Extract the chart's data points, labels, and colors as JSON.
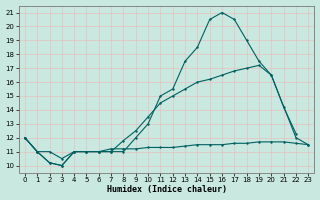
{
  "xlabel": "Humidex (Indice chaleur)",
  "bg_color": "#c8e8e0",
  "grid_color": "#e8c8c8",
  "line_color": "#006060",
  "xlim": [
    -0.5,
    23.5
  ],
  "ylim": [
    9.5,
    21.5
  ],
  "yticks": [
    10,
    11,
    12,
    13,
    14,
    15,
    16,
    17,
    18,
    19,
    20,
    21
  ],
  "xticks": [
    0,
    1,
    2,
    3,
    4,
    5,
    6,
    7,
    8,
    9,
    10,
    11,
    12,
    13,
    14,
    15,
    16,
    17,
    18,
    19,
    20,
    21,
    22,
    23
  ],
  "line1_x": [
    0,
    1,
    2,
    3,
    4,
    5,
    6,
    7,
    8,
    9,
    10,
    11,
    12,
    13,
    14,
    15,
    16,
    17,
    18,
    19,
    20,
    21,
    22
  ],
  "line1_y": [
    12.0,
    11.0,
    10.2,
    10.0,
    11.0,
    11.0,
    11.0,
    11.0,
    11.0,
    12.0,
    13.0,
    15.0,
    15.5,
    17.5,
    18.5,
    20.5,
    21.0,
    20.5,
    19.0,
    17.5,
    16.5,
    14.2,
    12.3
  ],
  "line2_x": [
    0,
    1,
    2,
    3,
    4,
    5,
    6,
    7,
    8,
    9,
    10,
    11,
    12,
    13,
    14,
    15,
    16,
    17,
    18,
    19,
    20,
    22,
    23
  ],
  "line2_y": [
    12.0,
    11.0,
    10.2,
    10.0,
    11.0,
    11.0,
    11.0,
    11.0,
    11.8,
    12.5,
    13.5,
    14.5,
    15.0,
    15.5,
    16.0,
    16.2,
    16.5,
    16.8,
    17.0,
    17.2,
    16.5,
    12.0,
    11.5
  ],
  "line3_x": [
    0,
    1,
    2,
    3,
    4,
    5,
    6,
    7,
    8,
    9,
    10,
    11,
    12,
    13,
    14,
    15,
    16,
    17,
    18,
    19,
    20,
    21,
    22,
    23
  ],
  "line3_y": [
    12.0,
    11.0,
    11.0,
    10.5,
    11.0,
    11.0,
    11.0,
    11.2,
    11.2,
    11.2,
    11.3,
    11.3,
    11.3,
    11.4,
    11.5,
    11.5,
    11.5,
    11.6,
    11.6,
    11.7,
    11.7,
    11.7,
    11.6,
    11.5
  ]
}
